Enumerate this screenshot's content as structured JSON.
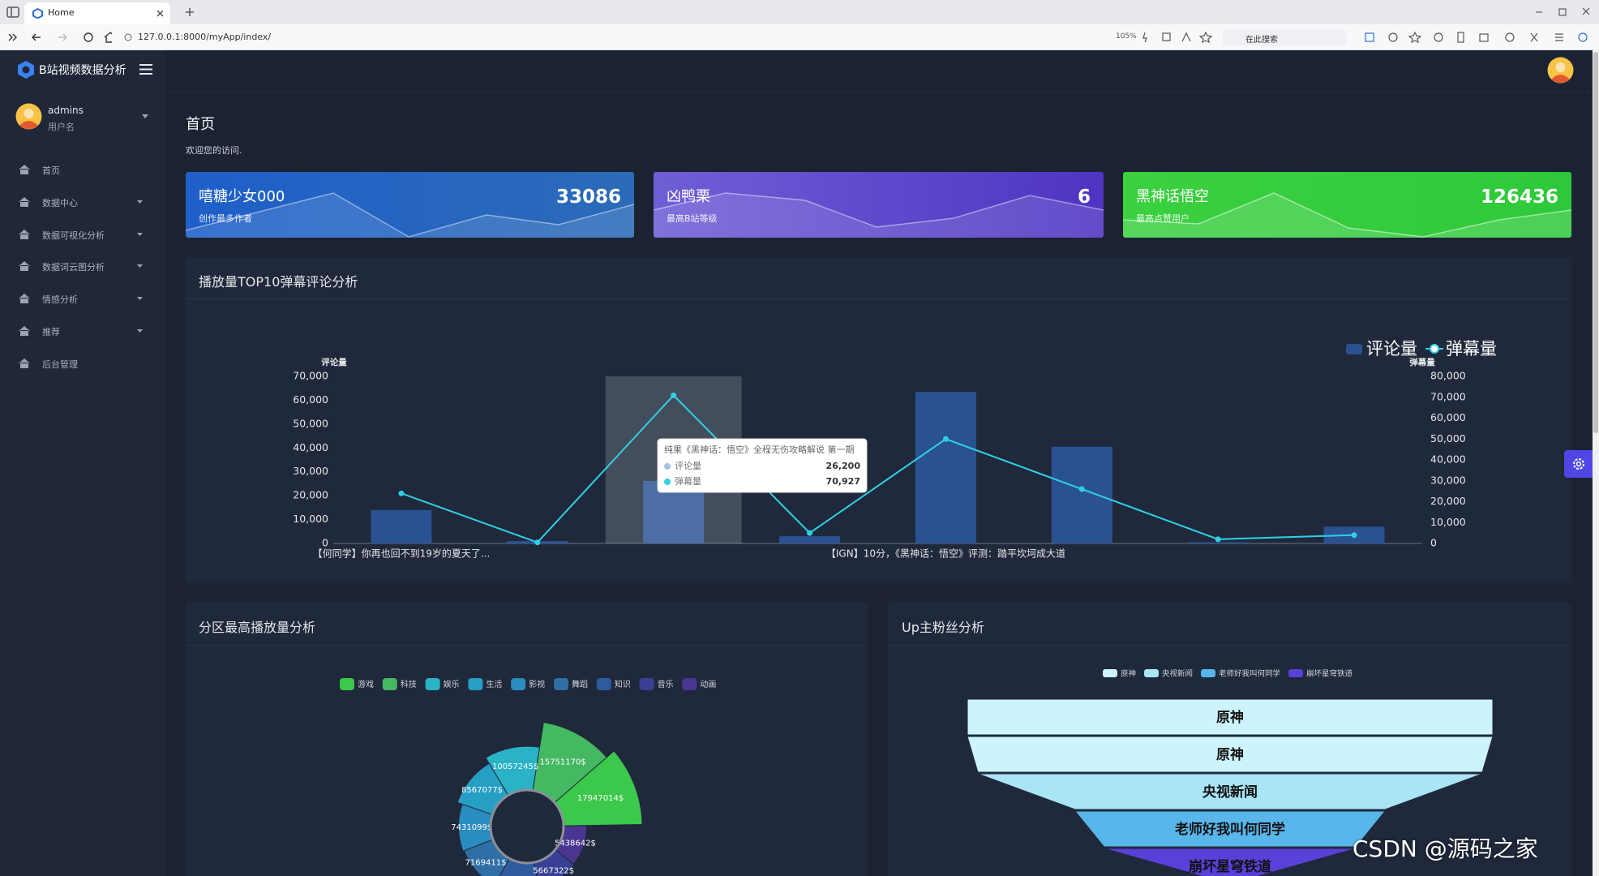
{
  "browser": {
    "tab_title": "Home",
    "url": "127.0.0.1:8000/myApp/index/",
    "zoom": "105%",
    "search_placeholder": "在此搜索"
  },
  "sidebar": {
    "logo": "B站视频数据分析",
    "user": {
      "name": "admins",
      "role": "用户名"
    },
    "menu": [
      {
        "label": "首页",
        "has_submenu": false
      },
      {
        "label": "数据中心",
        "has_submenu": true
      },
      {
        "label": "数据可视化分析",
        "has_submenu": true
      },
      {
        "label": "数据词云图分析",
        "has_submenu": true
      },
      {
        "label": "情感分析",
        "has_submenu": true
      },
      {
        "label": "推荐",
        "has_submenu": true
      },
      {
        "label": "后台管理",
        "has_submenu": false
      }
    ]
  },
  "page": {
    "title": "首页",
    "subtitle": "欢迎您的访问."
  },
  "cards": [
    {
      "title": "嘻糖少女000",
      "subtitle": "创作最多作者",
      "value": 33086
    },
    {
      "title": "凶鸭栗",
      "subtitle": "最高B站等级",
      "value": 6
    },
    {
      "title": "黑神话悟空",
      "subtitle": "最高点赞用户",
      "value": 126436
    }
  ],
  "watermark": "CSDN @源码之家",
  "chart_data": [
    {
      "type": "bar",
      "title": "播放量TOP10弹幕评论分析",
      "categories": [
        "【何同学】你再也回不到19岁的夏天了...",
        null,
        null,
        null,
        "【IGN】10分，《黑神话：悟空》评测：踏平坎坷成大道",
        null,
        null,
        null
      ],
      "series": [
        {
          "name": "评论量",
          "type": "bar",
          "color": "#2a5192",
          "values": [
            14000,
            1000,
            26200,
            3000,
            63500,
            40500,
            500,
            7000
          ]
        },
        {
          "name": "弹幕量",
          "type": "line",
          "axis": "y2",
          "color": "#2fd0e6",
          "values": [
            24000,
            500,
            70927,
            5000,
            50000,
            26000,
            2000,
            4000
          ]
        }
      ],
      "y_label": "评论量",
      "y2_label": "弹幕量",
      "ylim": [
        0,
        70000
      ],
      "yticks": [
        0,
        {
          "value": 10000,
          "label": "10,000"
        },
        {
          "value": 20000,
          "label": "20,000"
        },
        {
          "value": 30000,
          "label": "30,000"
        },
        {
          "value": 40000,
          "label": "40,000"
        },
        {
          "value": 50000,
          "label": "50,000"
        },
        {
          "value": 60000,
          "label": "60,000"
        },
        {
          "value": 70000,
          "label": "70,000"
        }
      ],
      "y2lim": [
        0,
        80000
      ],
      "y2ticks": [
        0,
        {
          "value": 10000,
          "label": "10,000"
        },
        {
          "value": 20000,
          "label": "20,000"
        },
        {
          "value": 30000,
          "label": "30,000"
        },
        {
          "value": 40000,
          "label": "40,000"
        },
        {
          "value": 50000,
          "label": "50,000"
        },
        {
          "value": 60000,
          "label": "60,000"
        },
        {
          "value": 70000,
          "label": "70,000"
        },
        {
          "value": 80000,
          "label": "80,000"
        }
      ],
      "grid": false,
      "legend": "top-right",
      "tooltip": {
        "index": 2,
        "category": "纯果《黑神话：悟空》全程无伤攻略解说 第一期",
        "value_labels": [
          "26,200",
          "70,927"
        ]
      }
    },
    {
      "type": "pie",
      "rose": true,
      "title": "分区最高播放量分析",
      "categories": [
        "游戏",
        "科技",
        "娱乐",
        "生活",
        "影视",
        "舞蹈",
        "知识",
        "音乐",
        "动画"
      ],
      "colors": [
        "#3cc84a",
        "#45b862",
        "#2ab3c6",
        "#279fc4",
        "#2a8cbf",
        "#2f6fa6",
        "#2e5b9e",
        "#393f95",
        "#4a3591"
      ],
      "values": [
        17947014,
        15751170,
        10057245,
        8567077,
        7431099,
        7169411,
        6300000,
        5667322,
        5438642
      ],
      "value_labels": [
        "17947014$",
        "15751170$",
        "10057245$",
        "8567077$",
        "7431099$",
        "7169411$",
        null,
        "5667322$",
        "5438642$"
      ]
    },
    {
      "type": "funnel",
      "title": "Up主粉丝分析",
      "categories": [
        "原神",
        "原神",
        "央视新闻",
        "老师好我叫何同学",
        "崩坏星穹铁道"
      ],
      "colors": [
        "#cdf3fc",
        "#cdf3fc",
        "#a9e5f7",
        "#58b6ea",
        "#5a3fd8"
      ],
      "values": [
        100,
        100,
        96,
        59,
        48
      ]
    }
  ]
}
